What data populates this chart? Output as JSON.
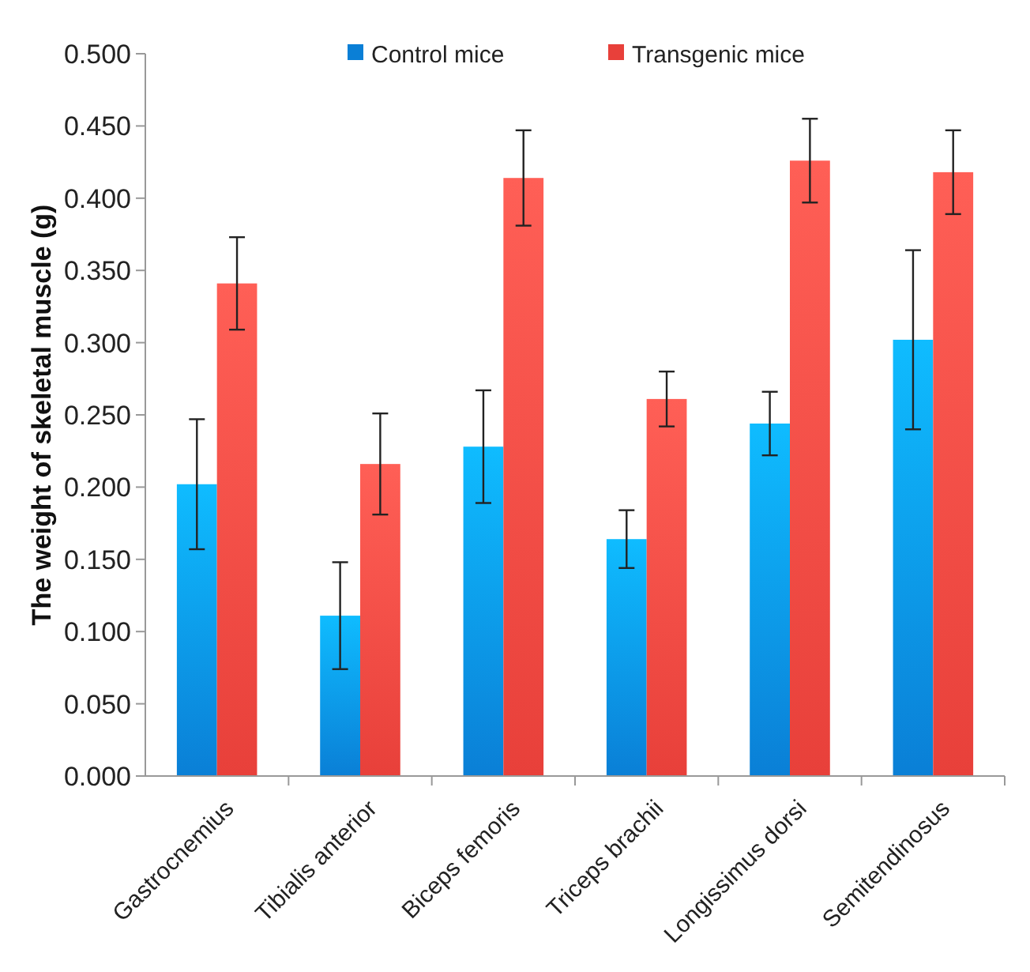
{
  "chart_data": {
    "type": "bar",
    "ylabel": "The weight of skeletal muscle (g)",
    "categories": [
      "Gastrocnemius",
      "Tibialis anterior",
      "Biceps femoris",
      "Triceps brachii",
      "Longissimus dorsi",
      "Semitendinosus"
    ],
    "series": [
      {
        "name": "Control mice",
        "color": "#0a7fd6",
        "values": [
          0.202,
          0.111,
          0.228,
          0.164,
          0.244,
          0.302
        ],
        "errors": [
          0.045,
          0.037,
          0.039,
          0.02,
          0.022,
          0.062
        ]
      },
      {
        "name": "Transgenic mice",
        "color": "#e8403a",
        "values": [
          0.341,
          0.216,
          0.414,
          0.261,
          0.426,
          0.418
        ],
        "errors": [
          0.032,
          0.035,
          0.033,
          0.019,
          0.029,
          0.029
        ]
      }
    ],
    "ylim": [
      0,
      0.5
    ],
    "yticks": [
      {
        "value": 0,
        "label": "0.000"
      },
      {
        "value": 0.05,
        "label": "0.050"
      },
      {
        "value": 0.1,
        "label": "0.100"
      },
      {
        "value": 0.15,
        "label": "0.150"
      },
      {
        "value": 0.2,
        "label": "0.200"
      },
      {
        "value": 0.25,
        "label": "0.250"
      },
      {
        "value": 0.3,
        "label": "0.300"
      },
      {
        "value": 0.35,
        "label": "0.350"
      },
      {
        "value": 0.4,
        "label": "0.400"
      },
      {
        "value": 0.45,
        "label": "0.450"
      },
      {
        "value": 0.5,
        "label": "0.500"
      }
    ],
    "grid": false,
    "legend": "top"
  }
}
